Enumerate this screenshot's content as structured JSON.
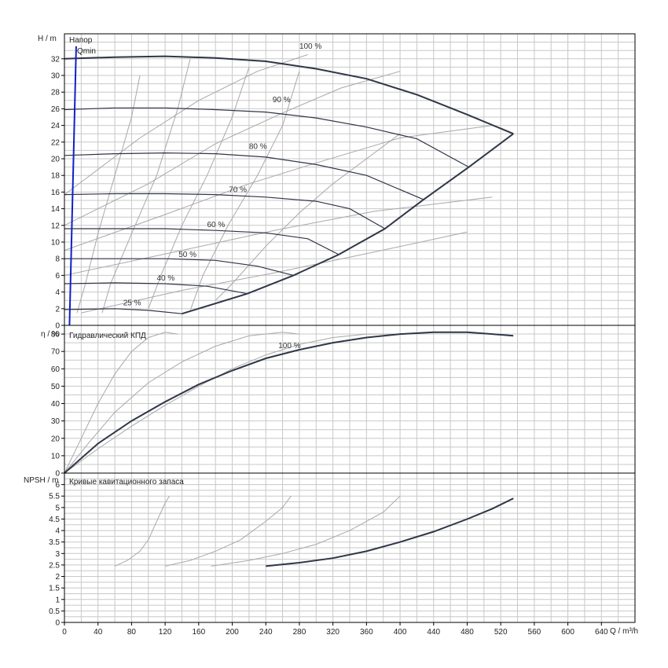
{
  "chart_data": {
    "type": "line",
    "x_label": "Q / m³/h",
    "x_range": [
      0,
      680
    ],
    "x_ticks": [
      "0",
      "40",
      "80",
      "120",
      "160",
      "200",
      "240",
      "280",
      "320",
      "360",
      "400",
      "440",
      "480",
      "520",
      "560",
      "600",
      "640"
    ],
    "panels": [
      {
        "id": "head",
        "title": "Напор",
        "y_label": "H / m",
        "y_range": [
          0,
          35
        ],
        "y_ticks": [
          "0",
          "2",
          "4",
          "6",
          "8",
          "10",
          "12",
          "14",
          "16",
          "18",
          "20",
          "22",
          "24",
          "26",
          "28",
          "30",
          "32"
        ],
        "qmin_label": "Qmin",
        "speed_curves": [
          {
            "label": "100 %",
            "points": [
              [
                0,
                32.0
              ],
              [
                60,
                32.2
              ],
              [
                120,
                32.3
              ],
              [
                180,
                32.1
              ],
              [
                240,
                31.7
              ],
              [
                300,
                30.8
              ],
              [
                360,
                29.6
              ],
              [
                420,
                27.7
              ],
              [
                480,
                25.3
              ],
              [
                535,
                23.0
              ]
            ]
          },
          {
            "label": "90 %",
            "points": [
              [
                0,
                25.9
              ],
              [
                60,
                26.1
              ],
              [
                120,
                26.1
              ],
              [
                180,
                25.9
              ],
              [
                240,
                25.6
              ],
              [
                300,
                24.9
              ],
              [
                360,
                23.8
              ],
              [
                420,
                22.4
              ],
              [
                482,
                19.0
              ]
            ]
          },
          {
            "label": "80 %",
            "points": [
              [
                0,
                20.4
              ],
              [
                60,
                20.6
              ],
              [
                120,
                20.7
              ],
              [
                180,
                20.6
              ],
              [
                240,
                20.2
              ],
              [
                300,
                19.3
              ],
              [
                360,
                18.0
              ],
              [
                428,
                15.1
              ]
            ]
          },
          {
            "label": "70 %",
            "points": [
              [
                0,
                15.7
              ],
              [
                60,
                15.8
              ],
              [
                120,
                15.8
              ],
              [
                180,
                15.7
              ],
              [
                240,
                15.4
              ],
              [
                300,
                14.9
              ],
              [
                340,
                14.0
              ],
              [
                382,
                11.6
              ]
            ]
          },
          {
            "label": "60 %",
            "points": [
              [
                0,
                11.6
              ],
              [
                60,
                11.6
              ],
              [
                120,
                11.6
              ],
              [
                180,
                11.4
              ],
              [
                240,
                11.1
              ],
              [
                290,
                10.4
              ],
              [
                327,
                8.5
              ]
            ]
          },
          {
            "label": "50 %",
            "points": [
              [
                0,
                8.0
              ],
              [
                60,
                8.0
              ],
              [
                120,
                8.0
              ],
              [
                180,
                7.8
              ],
              [
                230,
                7.1
              ],
              [
                273,
                6.0
              ]
            ]
          },
          {
            "label": "40 %",
            "points": [
              [
                0,
                5.0
              ],
              [
                60,
                5.1
              ],
              [
                120,
                5.0
              ],
              [
                170,
                4.7
              ],
              [
                218,
                3.8
              ]
            ]
          },
          {
            "label": "25 %",
            "points": [
              [
                0,
                1.9
              ],
              [
                60,
                2.0
              ],
              [
                100,
                1.8
              ],
              [
                140,
                1.4
              ]
            ]
          }
        ],
        "envelope": [
          [
            140,
            1.4
          ],
          [
            218,
            3.8
          ],
          [
            273,
            6.0
          ],
          [
            327,
            8.5
          ],
          [
            382,
            11.6
          ],
          [
            428,
            15.1
          ],
          [
            482,
            19.0
          ],
          [
            535,
            23.0
          ]
        ],
        "series_labels_xy": [
          [
            280,
            33.2
          ],
          [
            248,
            26.8
          ],
          [
            220,
            21.2
          ],
          [
            196,
            16.0
          ],
          [
            170,
            11.8
          ],
          [
            136,
            8.2
          ],
          [
            110,
            5.4
          ],
          [
            70,
            2.4
          ]
        ]
      },
      {
        "id": "efficiency",
        "title": "Гидравлический КПД",
        "y_label": "η / %",
        "y_range": [
          0,
          85
        ],
        "y_ticks": [
          "0",
          "10",
          "20",
          "30",
          "40",
          "50",
          "60",
          "70",
          "80"
        ],
        "efficiency_100": {
          "label": "100 %",
          "points": [
            [
              0,
              0
            ],
            [
              40,
              17
            ],
            [
              80,
              30
            ],
            [
              120,
              41
            ],
            [
              160,
              51
            ],
            [
              200,
              59
            ],
            [
              240,
              66
            ],
            [
              280,
              71
            ],
            [
              320,
              75
            ],
            [
              360,
              78
            ],
            [
              400,
              80
            ],
            [
              440,
              81
            ],
            [
              480,
              81
            ],
            [
              510,
              80
            ],
            [
              535,
              79
            ]
          ]
        },
        "efficiency_reduced": [
          [
            [
              0,
              0
            ],
            [
              20,
              20
            ],
            [
              40,
              40
            ],
            [
              60,
              57
            ],
            [
              80,
              70
            ],
            [
              100,
              78
            ],
            [
              120,
              81
            ],
            [
              135,
              80
            ]
          ],
          [
            [
              0,
              0
            ],
            [
              30,
              18
            ],
            [
              60,
              35
            ],
            [
              100,
              52
            ],
            [
              140,
              64
            ],
            [
              180,
              73
            ],
            [
              220,
              79
            ],
            [
              260,
              81
            ],
            [
              280,
              80
            ]
          ],
          [
            [
              0,
              0
            ],
            [
              40,
              14
            ],
            [
              80,
              27
            ],
            [
              120,
              39
            ],
            [
              160,
              50
            ],
            [
              200,
              60
            ],
            [
              240,
              68
            ],
            [
              280,
              74
            ],
            [
              320,
              78
            ],
            [
              360,
              80
            ],
            [
              400,
              80
            ]
          ]
        ]
      },
      {
        "id": "npsh",
        "title": "Кривые кавитационного запаса",
        "y_label": "NPSH / m",
        "y_range": [
          0,
          6.5
        ],
        "y_ticks": [
          "0",
          "0.5",
          "1",
          "1.5",
          "2",
          "2.5",
          "3",
          "3.5",
          "4",
          "4.5",
          "5",
          "5.5",
          "6"
        ],
        "npsh_100": {
          "points": [
            [
              240,
              2.45
            ],
            [
              280,
              2.6
            ],
            [
              320,
              2.8
            ],
            [
              360,
              3.1
            ],
            [
              400,
              3.5
            ],
            [
              440,
              3.95
            ],
            [
              480,
              4.5
            ],
            [
              510,
              4.95
            ],
            [
              535,
              5.4
            ]
          ]
        },
        "npsh_reduced": [
          [
            [
              60,
              2.45
            ],
            [
              75,
              2.7
            ],
            [
              90,
              3.1
            ],
            [
              100,
              3.6
            ],
            [
              110,
              4.4
            ],
            [
              120,
              5.2
            ],
            [
              125,
              5.5
            ]
          ],
          [
            [
              120,
              2.45
            ],
            [
              150,
              2.7
            ],
            [
              180,
              3.1
            ],
            [
              210,
              3.6
            ],
            [
              240,
              4.4
            ],
            [
              260,
              5.0
            ],
            [
              270,
              5.5
            ]
          ],
          [
            [
              175,
              2.45
            ],
            [
              220,
              2.7
            ],
            [
              260,
              3.0
            ],
            [
              300,
              3.4
            ],
            [
              340,
              4.0
            ],
            [
              380,
              4.8
            ],
            [
              400,
              5.5
            ]
          ]
        ]
      }
    ]
  },
  "colors": {
    "grid": "#c8c8c8",
    "frame": "#000000",
    "main_curve": "#2f3648",
    "reduced_curve": "#a8a8a8",
    "qmin_line": "#1020c8"
  }
}
